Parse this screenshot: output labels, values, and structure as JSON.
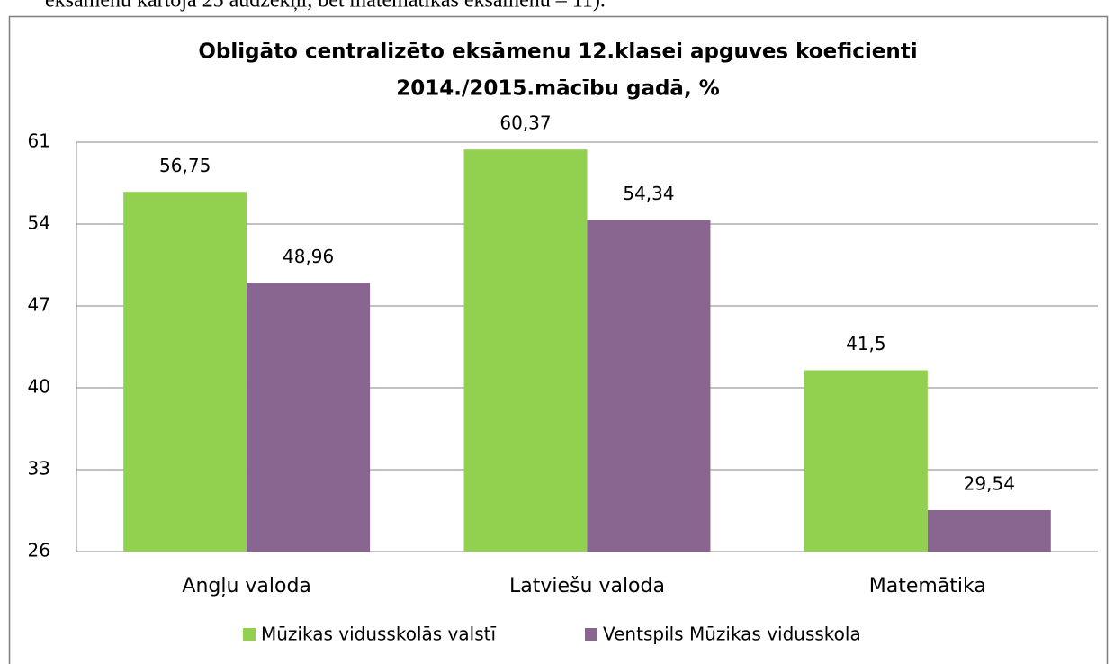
{
  "document": {
    "text_above": "eksāmenu kārtoja 25 audzēkņi, bet matemātikas eksāmenu – 11)."
  },
  "chart_data": {
    "type": "bar",
    "title": [
      "Obligāto centralizēto eksāmenu 12.klasei apguves koeficienti",
      "2014./2015.mācību gadā, %"
    ],
    "categories": [
      "Angļu valoda",
      "Latviešu valoda",
      "Matemātika"
    ],
    "series": [
      {
        "name": "Mūzikas vidusskolās valstī",
        "color": "#92d050",
        "values": [
          56.75,
          60.37,
          41.5
        ],
        "value_labels": [
          "56,75",
          "60,37",
          "41,5"
        ]
      },
      {
        "name": "Ventspils Mūzikas vidusskola",
        "color": "#886690",
        "values": [
          48.96,
          54.34,
          29.54
        ],
        "value_labels": [
          "48,96",
          "54,34",
          "29,54"
        ]
      }
    ],
    "ylim": [
      26,
      61
    ],
    "yticks": [
      26,
      33,
      40,
      47,
      54,
      61
    ],
    "grid": true,
    "legend": "bottom"
  }
}
